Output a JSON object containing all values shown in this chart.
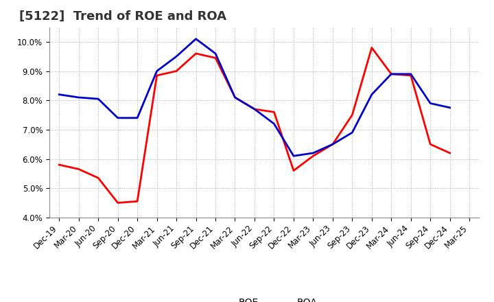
{
  "title": "[5122]  Trend of ROE and ROA",
  "labels": [
    "Dec-19",
    "Mar-20",
    "Jun-20",
    "Sep-20",
    "Dec-20",
    "Mar-21",
    "Jun-21",
    "Sep-21",
    "Dec-21",
    "Mar-22",
    "Jun-22",
    "Sep-22",
    "Dec-22",
    "Mar-23",
    "Jun-23",
    "Sep-23",
    "Dec-23",
    "Mar-24",
    "Jun-24",
    "Sep-24",
    "Dec-24",
    "Mar-25"
  ],
  "ROE": [
    5.8,
    5.65,
    5.35,
    4.5,
    4.55,
    8.85,
    9.0,
    9.6,
    9.45,
    8.1,
    7.7,
    7.6,
    5.6,
    6.1,
    6.5,
    7.5,
    9.8,
    8.9,
    8.85,
    6.5,
    6.2,
    null
  ],
  "ROA": [
    8.2,
    8.1,
    8.05,
    7.4,
    7.4,
    9.0,
    9.5,
    10.1,
    9.6,
    8.1,
    7.7,
    7.2,
    6.1,
    6.2,
    6.5,
    6.9,
    8.2,
    8.9,
    8.9,
    7.9,
    7.75,
    null
  ],
  "roe_color": "#FF0000",
  "roa_color": "#0000CC",
  "line_width": 2.0,
  "ylim": [
    4.0,
    10.5
  ],
  "yticks": [
    4.0,
    5.0,
    6.0,
    7.0,
    8.0,
    9.0,
    10.0
  ],
  "background_color": "#FFFFFF",
  "grid_color": "#AAAAAA",
  "title_fontsize": 13,
  "legend_fontsize": 10,
  "tick_fontsize": 8.5
}
